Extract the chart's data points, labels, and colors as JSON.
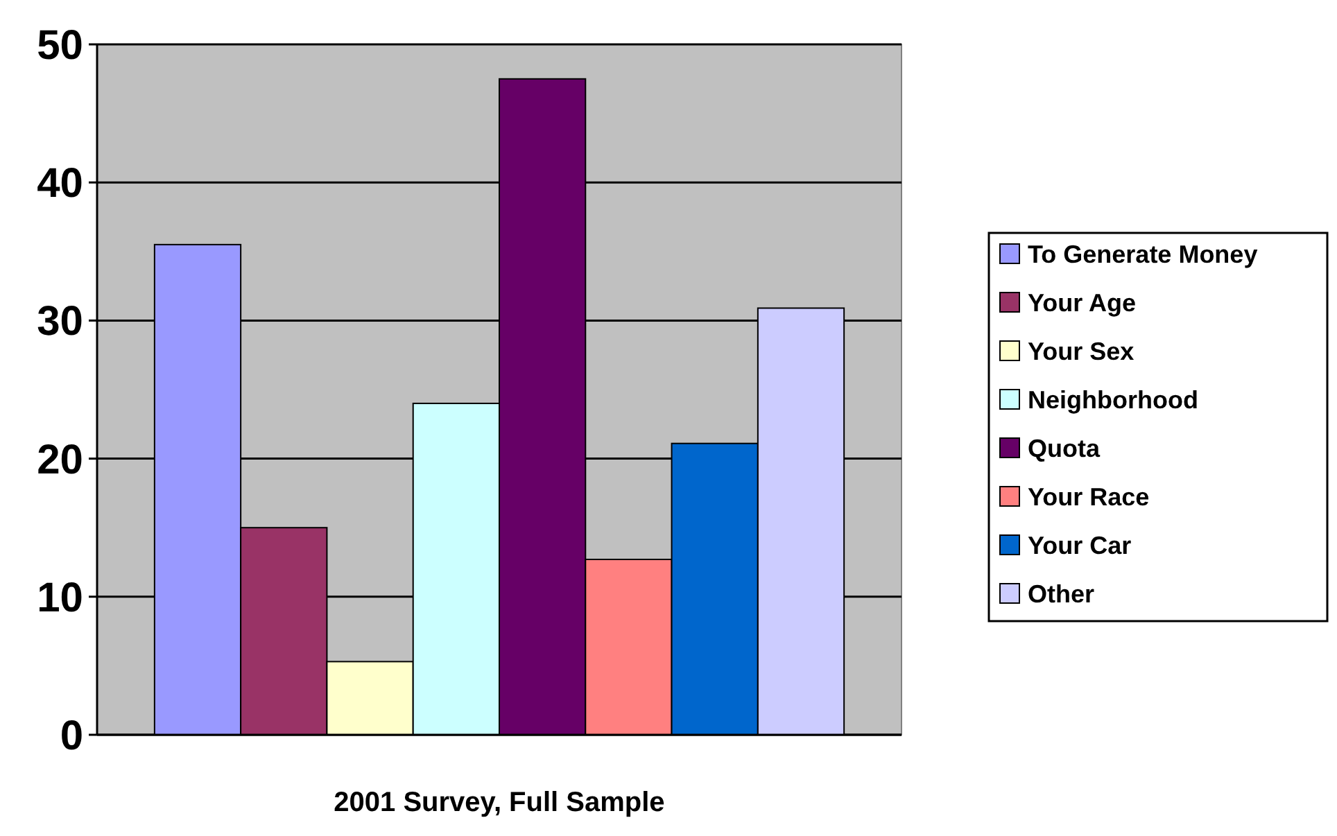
{
  "chart_data": {
    "type": "bar",
    "categories": [
      "2001 Survey, Full Sample"
    ],
    "series": [
      {
        "name": "To Generate Money",
        "color": "#9999ff",
        "values": [
          35.5
        ]
      },
      {
        "name": "Your Age",
        "color": "#993366",
        "values": [
          15
        ]
      },
      {
        "name": "Your Sex",
        "color": "#ffffcc",
        "values": [
          5.3
        ]
      },
      {
        "name": "Neighborhood",
        "color": "#ccffff",
        "values": [
          24
        ]
      },
      {
        "name": "Quota",
        "color": "#660066",
        "values": [
          47.5
        ]
      },
      {
        "name": "Your Race",
        "color": "#ff8080",
        "values": [
          12.7
        ]
      },
      {
        "name": "Your Car",
        "color": "#0066cc",
        "values": [
          21.1
        ]
      },
      {
        "name": "Other",
        "color": "#ccccff",
        "values": [
          30.9
        ]
      }
    ],
    "ylim": [
      0,
      50
    ],
    "yticks": [
      0,
      10,
      20,
      30,
      40,
      50
    ],
    "grid": "y",
    "legend": "right"
  }
}
